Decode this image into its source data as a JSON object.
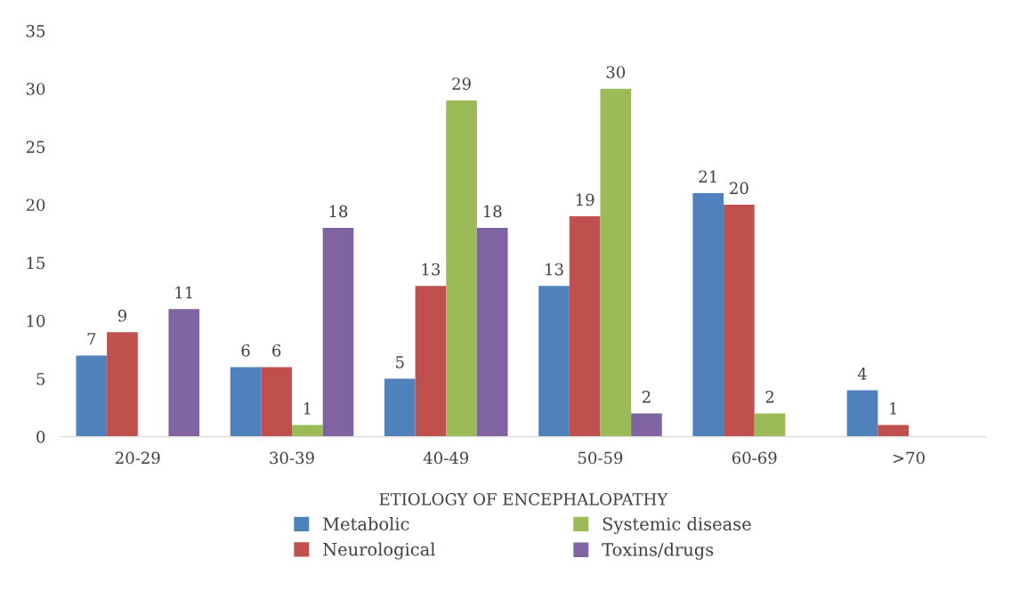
{
  "chart_data": {
    "type": "bar",
    "categories": [
      "20-29",
      "30-39",
      "40-49",
      "50-59",
      "60-69",
      ">70"
    ],
    "legend_title": "ETIOLOGY OF ENCEPHALOPATHY",
    "series": [
      {
        "name": "Metabolic",
        "color": "#4f81bd",
        "values": [
          7,
          6,
          5,
          13,
          21,
          4
        ],
        "value_labels": [
          "7",
          "6",
          "5",
          "13",
          "21",
          "4"
        ]
      },
      {
        "name": "Neurological",
        "color": "#c0504d",
        "values": [
          9,
          6,
          13,
          19,
          20,
          1
        ],
        "value_labels": [
          "9",
          "6",
          "13",
          "19",
          "20",
          "1"
        ]
      },
      {
        "name": "Systemic disease",
        "color": "#9bbb59",
        "values": [
          0,
          1,
          29,
          30,
          2,
          0
        ],
        "value_labels": [
          null,
          "1",
          "29",
          "30",
          "2",
          null
        ]
      },
      {
        "name": "Toxins/drugs",
        "color": "#8064a2",
        "values": [
          11,
          18,
          18,
          2,
          0,
          0
        ],
        "value_labels": [
          "11",
          "18",
          "18",
          "2",
          null,
          null
        ]
      }
    ],
    "ylim": [
      0,
      35
    ],
    "yticks": [
      0,
      5,
      10,
      15,
      20,
      25,
      30,
      35
    ],
    "grid": false,
    "legend": "bottom"
  }
}
